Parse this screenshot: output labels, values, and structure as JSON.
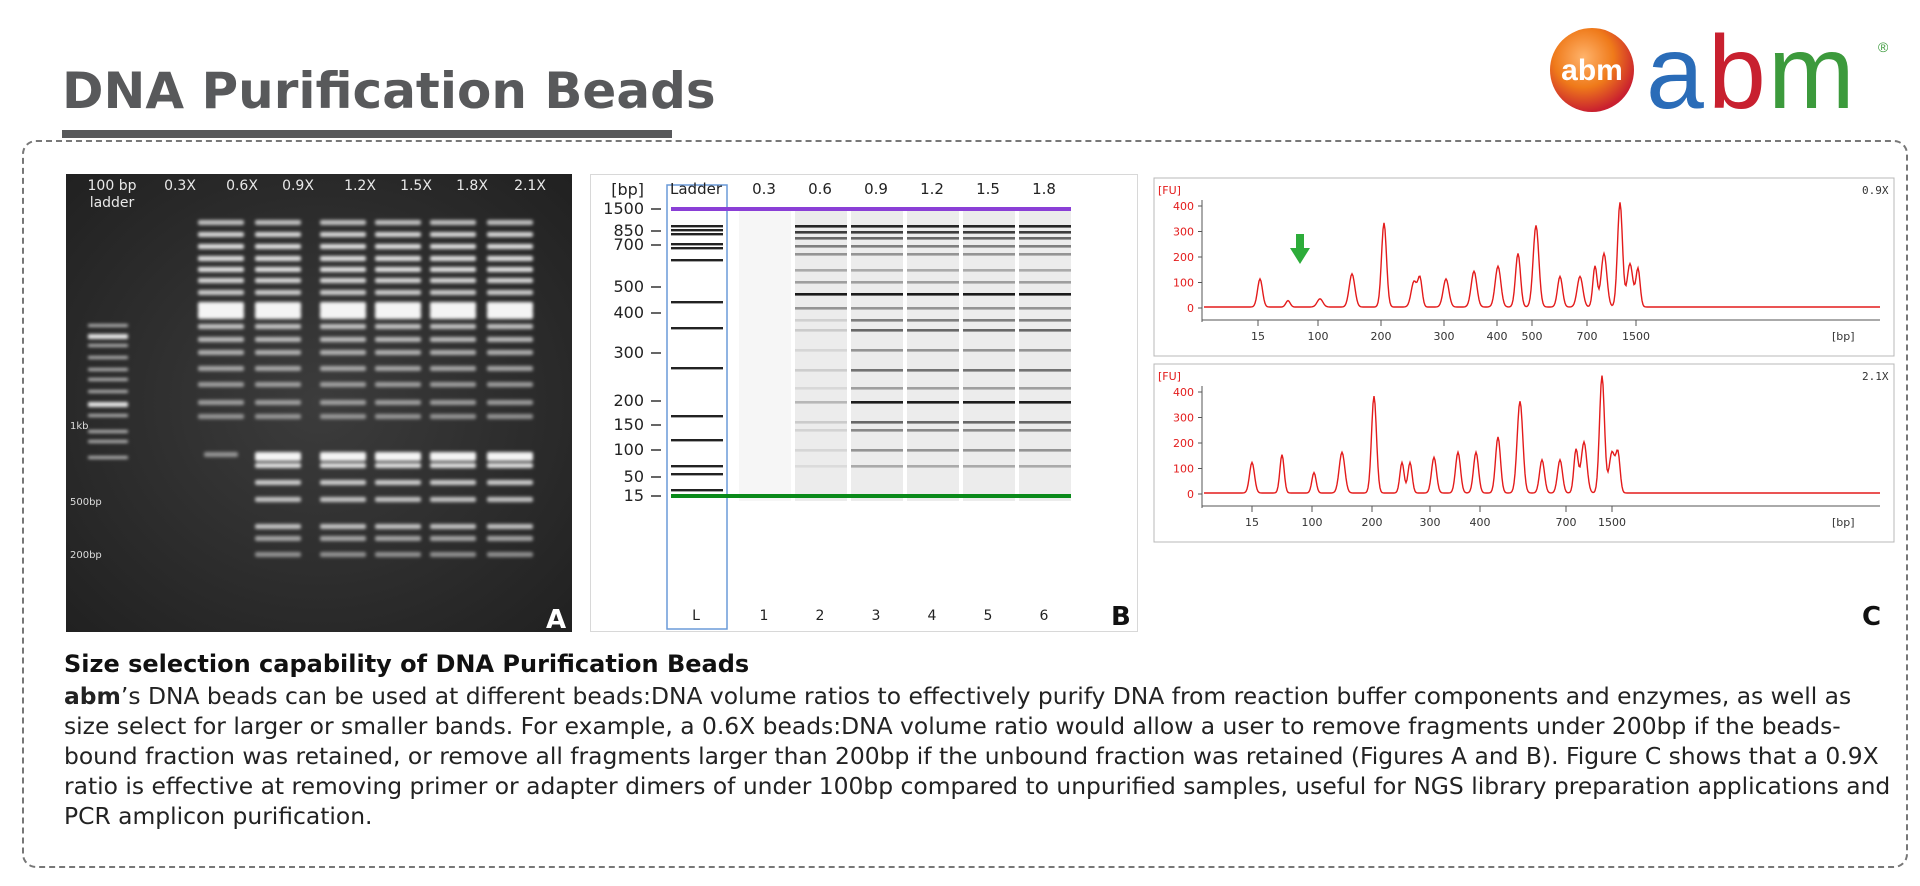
{
  "header": {
    "title": "DNA Purification Beads",
    "logo_badge_text": "abm",
    "logo_wordmark": "abm",
    "logo_registered": "®"
  },
  "panel_a": {
    "letter": "A",
    "lane_labels": [
      "100 bp ladder",
      "0.3X",
      "0.6X",
      "0.9X",
      "1.2X",
      "1.5X",
      "1.8X",
      "2.1X"
    ],
    "size_markers": [
      "1kb",
      "500bp",
      "200bp"
    ]
  },
  "panel_b": {
    "letter": "B",
    "axis_unit": "[bp]",
    "axis_ticks": [
      "1500",
      "850",
      "700",
      "500",
      "400",
      "300",
      "200",
      "150",
      "100",
      "50",
      "15"
    ],
    "lane_headers": [
      "Ladder",
      "0.3",
      "0.6",
      "0.9",
      "1.2",
      "1.5",
      "1.8"
    ],
    "lane_footers": [
      "L",
      "1",
      "2",
      "3",
      "4",
      "5",
      "6"
    ]
  },
  "panel_c": {
    "letter": "C",
    "y_unit": "[FU]",
    "x_unit": "[bp]",
    "y_ticks": [
      "0",
      "100",
      "200",
      "300",
      "400"
    ],
    "top_plot_label": "0.9X",
    "bottom_plot_label": "2.1X",
    "top_x_ticks": [
      "15",
      "100",
      "200",
      "300",
      "400",
      "500",
      "700",
      "1500"
    ],
    "bottom_x_ticks": [
      "15",
      "100",
      "200",
      "300",
      "400",
      "700",
      "1500"
    ]
  },
  "caption": {
    "heading": "Size selection capability of DNA Purification Beads",
    "brand": "abm",
    "body": "’s DNA beads can be used at different beads:DNA volume ratios to effectively purify DNA from reaction buffer components and enzymes, as well as size select for larger or smaller bands. For example, a 0.6X beads:DNA volume ratio would allow a user to remove fragments under 200bp if the beads-bound fraction was retained, or remove all fragments larger than 200bp if the unbound fraction was retained (Figures A and B). Figure C shows that a 0.9X ratio is effective at removing primer or adapter dimers of under 100bp compared to unpurified samples, useful for NGS library preparation applications and PCR amplicon purification."
  },
  "colors": {
    "title_gray": "#58595b",
    "logo_blue": "#2a6cb8",
    "logo_red": "#c8202f",
    "logo_green": "#3c9a3c",
    "logo_orange": "#ef7a1a",
    "marker_purple": "#8a3fd6",
    "marker_green": "#0a8a1a",
    "trace_red": "#e31b1b",
    "arrow_green": "#2dac3a"
  }
}
